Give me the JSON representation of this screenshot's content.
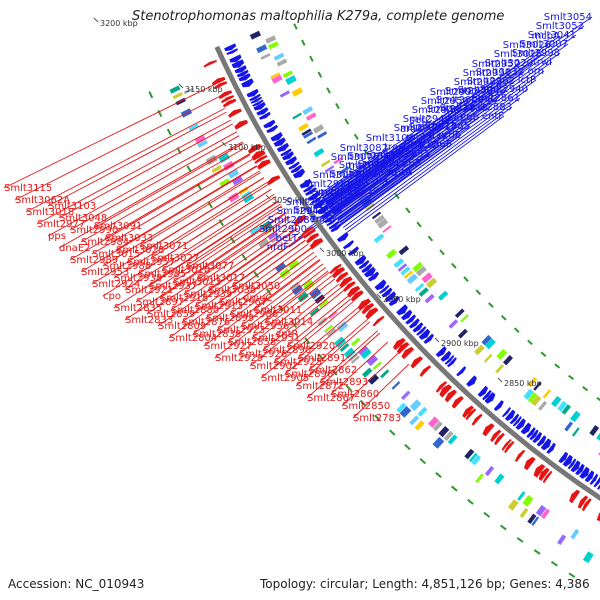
{
  "title": "Stenotrophomonas maltophilia K279a, complete genome",
  "footer": {
    "accession": "Accession: NC_010943",
    "stats": "Topology: circular; Length: 4,851,126 bp; Genes: 4,386"
  },
  "colors": {
    "forward_strand": "#1515e6",
    "reverse_strand": "#e61515",
    "backbone": "#777777",
    "gc_skew": "#2d9a2d"
  },
  "ticks": [
    "3200 kbp",
    "3150 kbp",
    "3100 kbp",
    "3050 kbp",
    "3000 kbp",
    "2950 kbp",
    "2900 kbp",
    "2850 kbp"
  ],
  "blue_labels": [
    "Smlt2961",
    "mcpA",
    "Smlt2952",
    "Smlt2992",
    "serC",
    "Smlt3082",
    "Smlt3054",
    "Smlt3026",
    "Smlt2991",
    "Smlt2950",
    "aroA",
    "Smlt3075",
    "Smlt3052",
    "Smlt3025",
    "Smlt2982",
    "Smlt2948",
    "Smlt3106",
    "traD",
    "Smlt3041",
    "Smlt3020",
    "Smlt2978",
    "Smlt2944",
    "traA",
    "Smlt3034",
    "Smlt3007",
    "Smlt3032",
    "Smlt3004",
    "Smlt2973",
    "Smlt2942",
    "Smlt2911",
    "Smlt2998",
    "Smlt2962",
    "Smlt3024",
    "mutX",
    "Smlt2930",
    "atzC2",
    "trwI",
    "Smlt3002",
    "phaE",
    "dsbE",
    "Smlt2922",
    "Smlt2894",
    "orn",
    "phaC",
    "Smlt2917",
    "Smlt2889",
    "dsbG",
    "Smlt2943",
    "lctP",
    "Smlt2888",
    "tex",
    "Smlt2941",
    "Smlt2916",
    "Smlt2887",
    "Smlt2940",
    "cgb",
    "lctD",
    "Smlt2886",
    "lctR",
    "Smlt2900",
    "Smlt2861",
    "Smlt2885",
    "Smlt2851",
    "dld",
    "Smlt2884",
    "betT",
    "Smlt2883",
    "nrdE",
    "Smlt2865",
    "Smlt2839",
    "entC",
    "nrdF",
    "entF",
    "Smlt2866",
    "entA"
  ],
  "red_labels": [
    "Smlt3115",
    "Smlt3103",
    "Smlt3091",
    "Smlt3071",
    "Smlt3077",
    "Smlt3050",
    "Smlt3062A",
    "Smlt3048",
    "Smlt3033",
    "Smlt3027",
    "Smlt3017",
    "umuC",
    "Smlt3018",
    "Smlt2990",
    "Smlt3028",
    "Smlt3010",
    "Smlt3030",
    "Smlt3011",
    "Smlt2977",
    "Smlt2984",
    "Smlt2957",
    "Smlt3013",
    "Smlt2967",
    "Smlt3014",
    "pps",
    "Smlt3015",
    "Smlt2985",
    "Smlt2939",
    "Smlt2986",
    "zntR",
    "dnaE2",
    "Smlt2988",
    "Smlt2937",
    "Smlt2913",
    "Smlt2956",
    "Smlt2920",
    "Smlt2989",
    "Smlt2938",
    "Smlt2918",
    "Smlt2899",
    "Smlt2951",
    "Smlt2891",
    "Smlt2953",
    "Smlt2921",
    "Smlt2880",
    "Smlt2923",
    "Smlt2890",
    "Smlt2862",
    "Smlt2924",
    "Smlt2897",
    "Smlt2876",
    "Smlt2858",
    "Smlt2925",
    "Smlt2893",
    "cpo",
    "Smlt2859",
    "Smlt2838",
    "Smlt2926",
    "Smlt2896",
    "Smlt2860",
    "Smlt2835",
    "Smlt2809",
    "Smlt2927",
    "Smlt2902",
    "Smlt2872",
    "Smlt2850",
    "Smlt2833",
    "Smlt2804",
    "Smlt2929",
    "Smlt2905",
    "Smlt2867",
    "Smlt2783"
  ]
}
